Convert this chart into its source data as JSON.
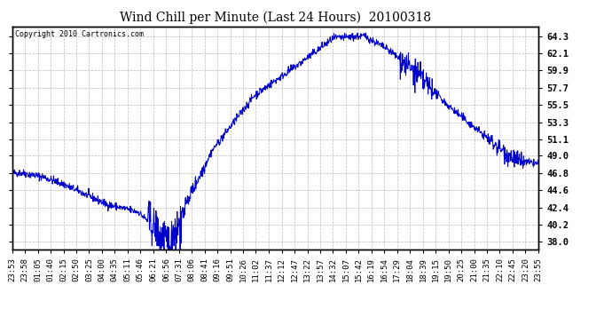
{
  "title": "Wind Chill per Minute (Last 24 Hours)  20100318",
  "copyright_text": "Copyright 2010 Cartronics.com",
  "ylabel_right": [
    "64.3",
    "62.1",
    "59.9",
    "57.7",
    "55.5",
    "53.3",
    "51.1",
    "49.0",
    "46.8",
    "44.6",
    "42.4",
    "40.2",
    "38.0"
  ],
  "ytick_values": [
    64.3,
    62.1,
    59.9,
    57.7,
    55.5,
    53.3,
    51.1,
    49.0,
    46.8,
    44.6,
    42.4,
    40.2,
    38.0
  ],
  "ymin": 37.0,
  "ymax": 65.5,
  "line_color": "#0000cc",
  "bg_color": "#ffffff",
  "plot_bg_color": "#ffffff",
  "grid_color": "#aaaaaa",
  "xtick_labels": [
    "23:53",
    "23:58",
    "01:05",
    "01:40",
    "02:15",
    "02:50",
    "03:25",
    "04:00",
    "04:35",
    "05:11",
    "05:46",
    "06:21",
    "06:56",
    "07:31",
    "08:06",
    "08:41",
    "09:16",
    "09:51",
    "10:26",
    "11:02",
    "11:37",
    "12:12",
    "12:47",
    "13:22",
    "13:57",
    "14:32",
    "15:07",
    "15:42",
    "16:19",
    "16:54",
    "17:29",
    "18:04",
    "18:39",
    "19:15",
    "19:50",
    "20:25",
    "21:00",
    "21:35",
    "22:10",
    "22:45",
    "23:20",
    "23:55"
  ],
  "figsize": [
    6.9,
    3.75
  ],
  "dpi": 100
}
